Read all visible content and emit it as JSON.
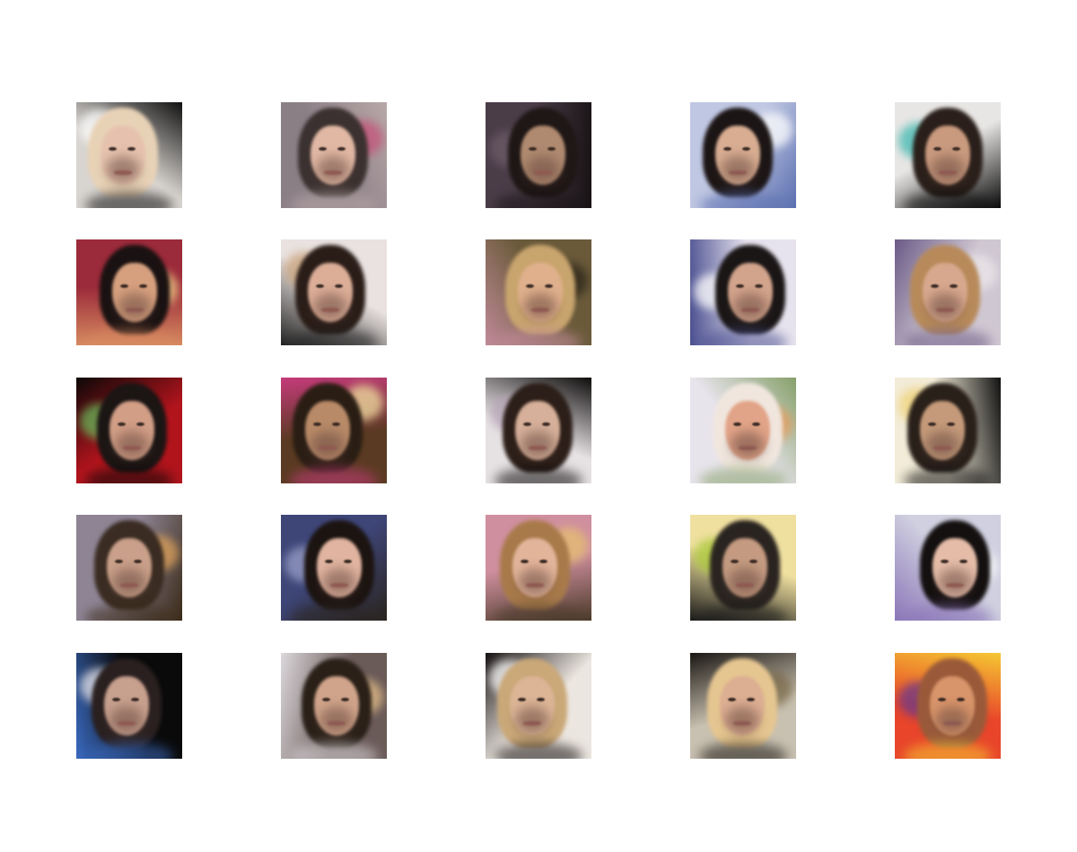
{
  "grid": {
    "rows": 5,
    "cols": 5,
    "tiles": [
      {
        "name": "sample-r1-c1",
        "bg": "#d8d4d0",
        "bg2": "#111111",
        "hair": "#e8d2b6",
        "skin": "#e6c2ae",
        "accent": "#ffffff"
      },
      {
        "name": "sample-r1-c2",
        "bg": "#8b7f86",
        "bg2": "#b9a8a8",
        "hair": "#3b3130",
        "skin": "#e1b8a4",
        "accent": "#c6537a"
      },
      {
        "name": "sample-r1-c3",
        "bg": "#4b3d48",
        "bg2": "#171214",
        "hair": "#1f1716",
        "skin": "#b08a70",
        "accent": "#6c5c68"
      },
      {
        "name": "sample-r1-c4",
        "bg": "#bfc7e2",
        "bg2": "#5b6fb0",
        "hair": "#1c1515",
        "skin": "#d8ad92",
        "accent": "#ffffff"
      },
      {
        "name": "sample-r1-c5",
        "bg": "#e8e6e4",
        "bg2": "#0a0a0a",
        "hair": "#2a1f1a",
        "skin": "#c99a7e",
        "accent": "#3fb8b0"
      },
      {
        "name": "sample-r2-c1",
        "bg": "#9b2a3a",
        "bg2": "#d78a60",
        "hair": "#1a1212",
        "skin": "#d6a07e",
        "accent": "#f2d58a"
      },
      {
        "name": "sample-r2-c2",
        "bg": "#e9e2e0",
        "bg2": "#222222",
        "hair": "#2a1d18",
        "skin": "#dcae98",
        "accent": "#c9a17a"
      },
      {
        "name": "sample-r2-c3",
        "bg": "#6a5a3a",
        "bg2": "#c08a98",
        "hair": "#c9a56e",
        "skin": "#e0b08c",
        "accent": "#2a2418"
      },
      {
        "name": "sample-r2-c4",
        "bg": "#e7e3ee",
        "bg2": "#4a4f90",
        "hair": "#1a1616",
        "skin": "#d3a48c",
        "accent": "#ffffff"
      },
      {
        "name": "sample-r2-c5",
        "bg": "#cfc7d2",
        "bg2": "#6b5a86",
        "hair": "#b88a5a",
        "skin": "#d8a88e",
        "accent": "#ece8ea"
      },
      {
        "name": "sample-r3-c1",
        "bg": "#b2141c",
        "bg2": "#0c0808",
        "hair": "#1b1514",
        "skin": "#d29e86",
        "accent": "#6ab85a"
      },
      {
        "name": "sample-r3-c2",
        "bg": "#5a3a22",
        "bg2": "#c53b7a",
        "hair": "#2a1e14",
        "skin": "#b88a68",
        "accent": "#f2e0a0"
      },
      {
        "name": "sample-r3-c3",
        "bg": "#e6e2e4",
        "bg2": "#0e0b0b",
        "hair": "#2c1e18",
        "skin": "#d6b09a",
        "accent": "#b8a6b8"
      },
      {
        "name": "sample-r3-c4",
        "bg": "#e8e4ec",
        "bg2": "#86a06a",
        "hair": "#f0e6de",
        "skin": "#e2a488",
        "accent": "#e69a58"
      },
      {
        "name": "sample-r3-c5",
        "bg": "#f2ecd8",
        "bg2": "#111111",
        "hair": "#2a201a",
        "skin": "#c49a7a",
        "accent": "#f0d278"
      },
      {
        "name": "sample-r4-c1",
        "bg": "#8e8494",
        "bg2": "#3a2a18",
        "hair": "#3a2c22",
        "skin": "#caa08a",
        "accent": "#e0a35a"
      },
      {
        "name": "sample-r4-c2",
        "bg": "#3e4678",
        "bg2": "#2a241e",
        "hair": "#1c1411",
        "skin": "#e0b4a0",
        "accent": "#9aa0c8"
      },
      {
        "name": "sample-r4-c3",
        "bg": "#cf8f9e",
        "bg2": "#4a3a2a",
        "hair": "#a87a4a",
        "skin": "#e2b49a",
        "accent": "#e6c070"
      },
      {
        "name": "sample-r4-c4",
        "bg": "#f0e0a0",
        "bg2": "#1a1a1a",
        "hair": "#2a2420",
        "skin": "#c49a80",
        "accent": "#a8c838"
      },
      {
        "name": "sample-r4-c5",
        "bg": "#d0d0e0",
        "bg2": "#8a76b8",
        "hair": "#141010",
        "skin": "#e4bca8",
        "accent": "#ffffff"
      },
      {
        "name": "sample-r5-c1",
        "bg": "#0a0a0a",
        "bg2": "#3a6ac0",
        "hair": "#2a2020",
        "skin": "#c8a08e",
        "accent": "#e8e8f0"
      },
      {
        "name": "sample-r5-c2",
        "bg": "#6a5a58",
        "bg2": "#dcd8dc",
        "hair": "#2a2018",
        "skin": "#d0a48a",
        "accent": "#e6c08a"
      },
      {
        "name": "sample-r5-c3",
        "bg": "#ece6e0",
        "bg2": "#151010",
        "hair": "#caa878",
        "skin": "#dcb496",
        "accent": "#ffffff"
      },
      {
        "name": "sample-r5-c4",
        "bg": "#c8c0b0",
        "bg2": "#1a1612",
        "hair": "#e6c690",
        "skin": "#dcae92",
        "accent": "#7a6a4a"
      },
      {
        "name": "sample-r5-c5",
        "bg": "#e8452a",
        "bg2": "#f5c832",
        "hair": "#9a5a3a",
        "skin": "#d8946a",
        "accent": "#6a3a8a"
      }
    ]
  }
}
